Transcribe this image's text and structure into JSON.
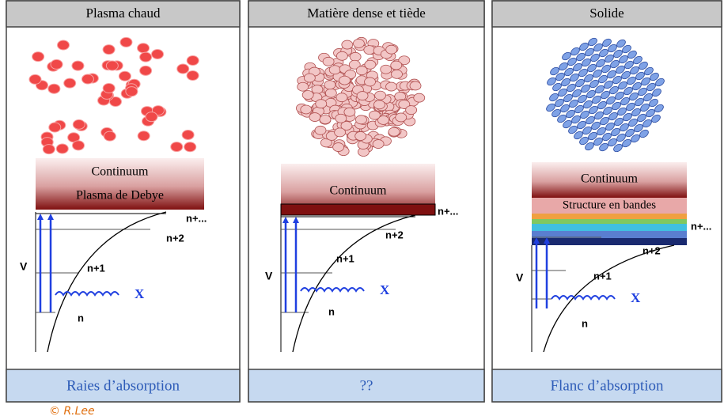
{
  "panels": [
    {
      "title": "Matière dense et tiède",
      "continuum": "Continuum",
      "band_label": null,
      "levels": [
        "n+...",
        "n+2",
        "n+1",
        "n"
      ],
      "v": "V",
      "x": "X",
      "footer": "??"
    }
  ],
  "all_panels": [
    {
      "title": "Plasma chaud",
      "continuum": "Continuum",
      "sublabel": "Plasma de Debye",
      "levels": [
        "n+...",
        "n+2",
        "n+1",
        "n"
      ],
      "v": "V",
      "x": "X",
      "footer": "Raies d’absorption"
    },
    {
      "title": "Matière dense et tiède",
      "continuum": "Continuum",
      "levels": [
        "n+...",
        "n+2",
        "n+1",
        "n"
      ],
      "v": "V",
      "x": "X",
      "footer": "??"
    },
    {
      "title": "Solide",
      "continuum": "Continuum",
      "sublabel": "Structure en bandes",
      "levels": [
        "n+...",
        "n+2",
        "n+1",
        "n"
      ],
      "v": "V",
      "x": "X",
      "footer": "Flanc d’absorption"
    }
  ],
  "credit": "© R.Lee"
}
